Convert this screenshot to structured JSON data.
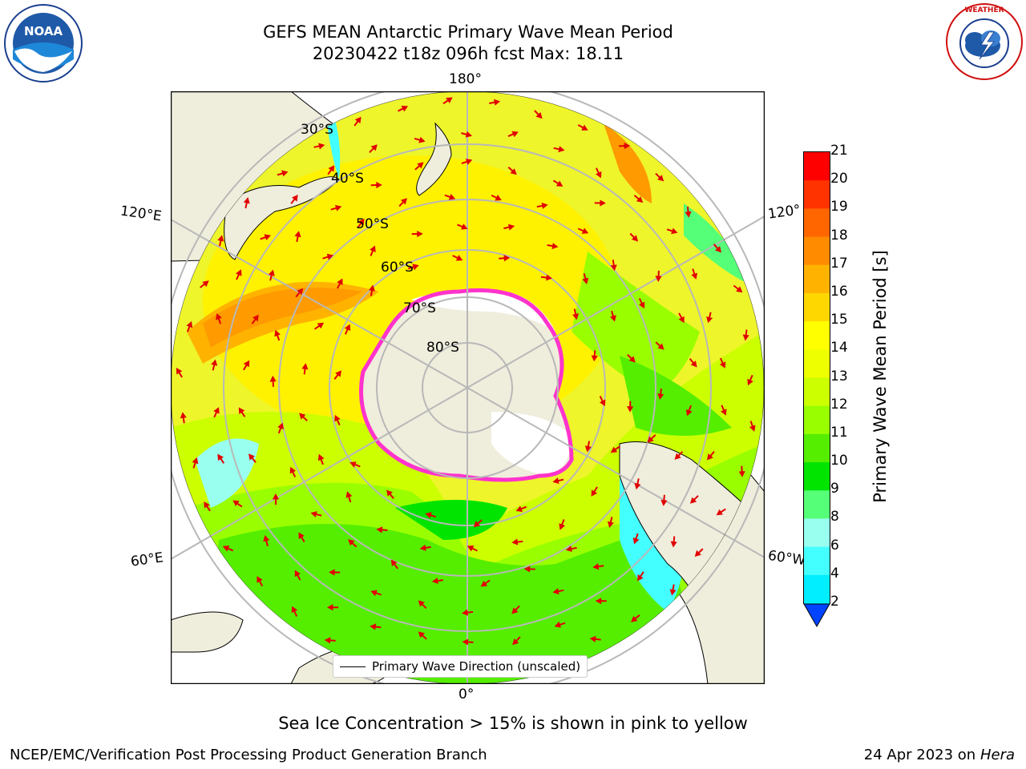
{
  "title_line1": "GEFS MEAN Antarctic Primary Wave Mean Period",
  "title_line2": "20230422 t18z 096h fcst   Max: 18.11",
  "longitude_labels": {
    "top": "180°",
    "bottom": "0°",
    "left_upper": "120°E",
    "left_lower": "60°E",
    "right_upper": "120°",
    "right_lower": "60°W"
  },
  "latitude_labels": [
    "30°S",
    "40°S",
    "50°S",
    "60°S",
    "70°S",
    "80°S"
  ],
  "legend": {
    "label": "Primary Wave Direction (unscaled)"
  },
  "colorbar": {
    "label": "Primary Wave Mean Period [s]",
    "ticks": [
      "21",
      "20",
      "19",
      "18",
      "17",
      "16",
      "15",
      "14",
      "13",
      "12",
      "11",
      "10",
      "9",
      "8",
      "6",
      "4",
      "2"
    ],
    "colors": [
      "#ff0000",
      "#ff3300",
      "#ff6600",
      "#ff8c00",
      "#ffb300",
      "#ffd700",
      "#ffff00",
      "#eeff00",
      "#ccff00",
      "#99ff00",
      "#55ee00",
      "#00e400",
      "#55ff77",
      "#99ffee",
      "#44ffff",
      "#00eeff",
      "#00ccff",
      "#0088ff",
      "#0044ff"
    ]
  },
  "caption": "Sea Ice Concentration > 15% is shown in pink to yellow",
  "footer_left": "NCEP/EMC/Verification Post Processing Product Generation Branch",
  "footer_right_date": "24 Apr 2023 on",
  "footer_right_machine": "Hera",
  "logos": [
    "noaa-logo",
    "national-weather-service-logo"
  ],
  "chart_data": {
    "type": "heatmap",
    "title": "GEFS MEAN Antarctic Primary Wave Mean Period",
    "subtitle": "20230422 t18z 096h fcst   Max: 18.11",
    "projection": "south polar stereographic",
    "variable": "Primary Wave Mean Period [s]",
    "colorbar_ticks": [
      2,
      4,
      6,
      8,
      9,
      10,
      11,
      12,
      13,
      14,
      15,
      16,
      17,
      18,
      19,
      20,
      21
    ],
    "max": 18.11,
    "overlays": [
      "Primary Wave Direction (unscaled)",
      "Sea Ice Concentration > 15%"
    ]
  }
}
